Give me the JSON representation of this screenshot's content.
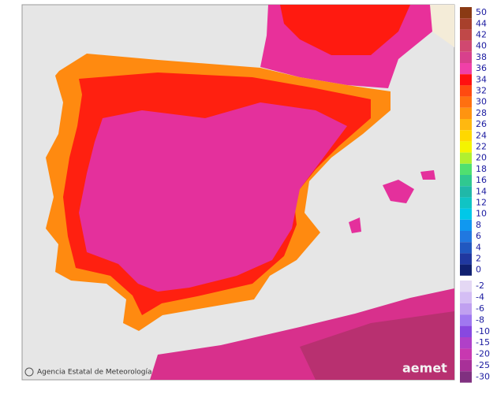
{
  "credit": "Agencia Estatal de Meteorología",
  "logo": "aemet",
  "legend": {
    "warm": [
      {
        "value": 50,
        "color": "#8a3a14"
      },
      {
        "value": 44,
        "color": "#a8402c"
      },
      {
        "value": 42,
        "color": "#c04848"
      },
      {
        "value": 40,
        "color": "#d04870"
      },
      {
        "value": 38,
        "color": "#d8408c"
      },
      {
        "value": 36,
        "color": "#f040a8"
      },
      {
        "value": 34,
        "color": "#ff1010"
      },
      {
        "value": 32,
        "color": "#ff4a10"
      },
      {
        "value": 30,
        "color": "#ff7010"
      },
      {
        "value": 28,
        "color": "#ff9410"
      },
      {
        "value": 26,
        "color": "#ffb810"
      },
      {
        "value": 24,
        "color": "#ffd800"
      },
      {
        "value": 22,
        "color": "#f4f400"
      },
      {
        "value": 20,
        "color": "#b0f030"
      },
      {
        "value": 18,
        "color": "#50e070"
      },
      {
        "value": 16,
        "color": "#30c890"
      },
      {
        "value": 14,
        "color": "#20b8a8"
      },
      {
        "value": 12,
        "color": "#10c4c4"
      },
      {
        "value": 10,
        "color": "#00c8e8"
      },
      {
        "value": 8,
        "color": "#1098f0"
      },
      {
        "value": 6,
        "color": "#2078e0"
      },
      {
        "value": 4,
        "color": "#2058c0"
      },
      {
        "value": 2,
        "color": "#2038a0"
      },
      {
        "value": 0,
        "color": "#102070"
      }
    ],
    "cold": [
      {
        "value": -2,
        "color": "#e4d8f4"
      },
      {
        "value": -4,
        "color": "#d4bef4"
      },
      {
        "value": -6,
        "color": "#c0a0f0"
      },
      {
        "value": -8,
        "color": "#a078f0"
      },
      {
        "value": -10,
        "color": "#8848e0"
      },
      {
        "value": -15,
        "color": "#b040c8"
      },
      {
        "value": -20,
        "color": "#c838b0"
      },
      {
        "value": -25,
        "color": "#a83098"
      },
      {
        "value": -30,
        "color": "#803080"
      }
    ]
  }
}
